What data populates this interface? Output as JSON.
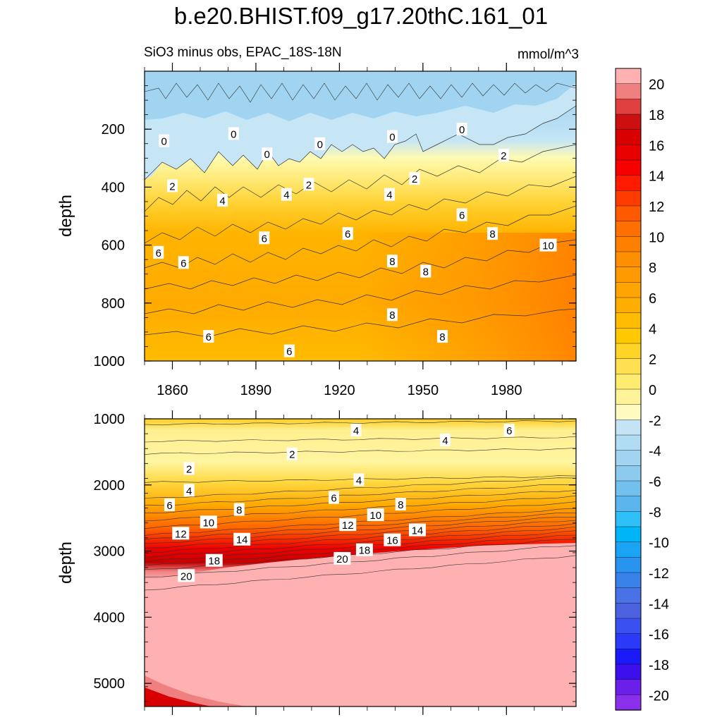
{
  "title": "b.e20.BHIST.f09_g17.20thC.161_01",
  "subtitle": "SiO3 minus obs, EPAC_18S-18N",
  "units": "mmol/m^3",
  "chart_data": [
    {
      "type": "heatmap",
      "panel": "upper",
      "ylabel": "depth",
      "xlabel": "",
      "xlim": [
        1850,
        2005
      ],
      "ylim": [
        1000,
        0
      ],
      "yticks": [
        "200",
        "400",
        "600",
        "800",
        "1000"
      ],
      "xticks": [
        "1860",
        "1890",
        "1920",
        "1950",
        "1980"
      ],
      "contour_labels": [
        {
          "text": "0",
          "x": 1857,
          "y": 240
        },
        {
          "text": "0",
          "x": 1882,
          "y": 215
        },
        {
          "text": "0",
          "x": 1894,
          "y": 285
        },
        {
          "text": "0",
          "x": 1913,
          "y": 250
        },
        {
          "text": "0",
          "x": 1939,
          "y": 225
        },
        {
          "text": "0",
          "x": 1964,
          "y": 200
        },
        {
          "text": "2",
          "x": 1979,
          "y": 290
        },
        {
          "text": "2",
          "x": 1860,
          "y": 395
        },
        {
          "text": "2",
          "x": 1909,
          "y": 390
        },
        {
          "text": "2",
          "x": 1947,
          "y": 370
        },
        {
          "text": "4",
          "x": 1878,
          "y": 445
        },
        {
          "text": "4",
          "x": 1901,
          "y": 425
        },
        {
          "text": "4",
          "x": 1938,
          "y": 425
        },
        {
          "text": "6",
          "x": 1964,
          "y": 495
        },
        {
          "text": "6",
          "x": 1893,
          "y": 575
        },
        {
          "text": "6",
          "x": 1923,
          "y": 560
        },
        {
          "text": "8",
          "x": 1975,
          "y": 560
        },
        {
          "text": "10",
          "x": 1995,
          "y": 600
        },
        {
          "text": "6",
          "x": 1855,
          "y": 625
        },
        {
          "text": "6",
          "x": 1864,
          "y": 660
        },
        {
          "text": "8",
          "x": 1939,
          "y": 655
        },
        {
          "text": "8",
          "x": 1951,
          "y": 690
        },
        {
          "text": "8",
          "x": 1939,
          "y": 840
        },
        {
          "text": "8",
          "x": 1957,
          "y": 915
        },
        {
          "text": "6",
          "x": 1873,
          "y": 915
        },
        {
          "text": "6",
          "x": 1902,
          "y": 965
        }
      ]
    },
    {
      "type": "heatmap",
      "panel": "lower",
      "ylabel": "depth",
      "xlabel": "",
      "xlim": [
        1850,
        2005
      ],
      "ylim": [
        5350,
        1000
      ],
      "yticks": [
        "1000",
        "2000",
        "3000",
        "4000",
        "5000"
      ],
      "contour_labels": [
        {
          "text": "4",
          "x": 1926,
          "y": 1170
        },
        {
          "text": "6",
          "x": 1981,
          "y": 1170
        },
        {
          "text": "4",
          "x": 1958,
          "y": 1320
        },
        {
          "text": "2",
          "x": 1903,
          "y": 1530
        },
        {
          "text": "2",
          "x": 1866,
          "y": 1750
        },
        {
          "text": "4",
          "x": 1927,
          "y": 1920
        },
        {
          "text": "4",
          "x": 1866,
          "y": 2080
        },
        {
          "text": "6",
          "x": 1859,
          "y": 2300
        },
        {
          "text": "6",
          "x": 1918,
          "y": 2190
        },
        {
          "text": "8",
          "x": 1884,
          "y": 2370
        },
        {
          "text": "8",
          "x": 1942,
          "y": 2290
        },
        {
          "text": "10",
          "x": 1873,
          "y": 2560
        },
        {
          "text": "10",
          "x": 1933,
          "y": 2450
        },
        {
          "text": "12",
          "x": 1863,
          "y": 2730
        },
        {
          "text": "12",
          "x": 1923,
          "y": 2600
        },
        {
          "text": "14",
          "x": 1885,
          "y": 2820
        },
        {
          "text": "14",
          "x": 1948,
          "y": 2680
        },
        {
          "text": "16",
          "x": 1939,
          "y": 2830
        },
        {
          "text": "18",
          "x": 1875,
          "y": 3140
        },
        {
          "text": "18",
          "x": 1929,
          "y": 2980
        },
        {
          "text": "20",
          "x": 1865,
          "y": 3370
        },
        {
          "text": "20",
          "x": 1921,
          "y": 3110
        }
      ]
    }
  ],
  "colorbar": {
    "labels": [
      "20",
      "18",
      "16",
      "14",
      "12",
      "10",
      "8",
      "6",
      "4",
      "2",
      "0",
      "-2",
      "-4",
      "-6",
      "-8",
      "-10",
      "-12",
      "-14",
      "-16",
      "-18",
      "-20"
    ],
    "colors": [
      "#ffb0b0",
      "#f08080",
      "#e04040",
      "#cc1010",
      "#d80000",
      "#e80000",
      "#f80000",
      "#ff1a00",
      "#ff3c00",
      "#ff5a00",
      "#ff7000",
      "#ff8000",
      "#ff8e00",
      "#ff9a00",
      "#ffa400",
      "#ffae00",
      "#ffbc00",
      "#ffc800",
      "#ffd428",
      "#ffe050",
      "#ffeb70",
      "#fff39a",
      "#fffac0",
      "#c4e4f6",
      "#b0dcf4",
      "#a0d4f0",
      "#8ccaee",
      "#72c0ee",
      "#5cb6ee",
      "#30c0f8",
      "#00b4f8",
      "#1aa4f4",
      "#2894f0",
      "#3882ea",
      "#4872e6",
      "#4a62e0",
      "#3a50f0",
      "#2a3af8",
      "#1a1af8",
      "#3c10ec",
      "#6a20e8",
      "#8a30ea"
    ]
  }
}
